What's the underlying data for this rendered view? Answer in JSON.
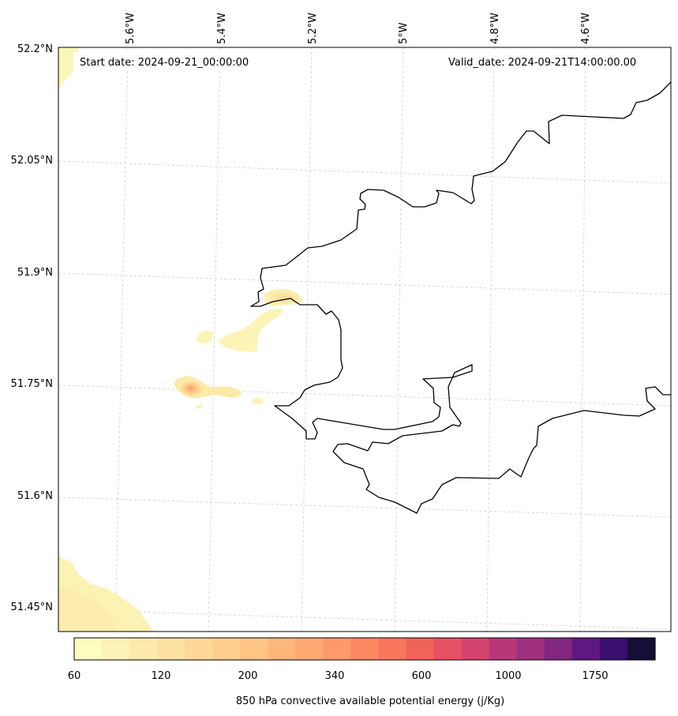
{
  "map": {
    "start_date": "Start date: 2024-09-21_00:00:00",
    "valid_date": "Valid_date: 2024-09-21T14:00:00.00",
    "longitude_ticks": [
      "5.6°W",
      "5.4°W",
      "5.2°W",
      "5°W",
      "4.8°W",
      "4.6°W"
    ],
    "latitude_ticks": [
      "52.2°N",
      "52.05°N",
      "51.9°N",
      "51.75°N",
      "51.6°N",
      "51.45°N"
    ],
    "extent": {
      "lon_min": -5.75,
      "lon_max": -4.4,
      "lat_min": 51.42,
      "lat_max": 52.2
    },
    "gridlines": "dashed",
    "coastline_color": "#000000"
  },
  "colorbar": {
    "label": "850 hPa convective available potential energy (j/Kg)",
    "tick_labels": [
      "60",
      "120",
      "200",
      "340",
      "600",
      "1000",
      "1750"
    ],
    "colors": [
      "#fcfdbf",
      "#fcf4b6",
      "#fceaac",
      "#fde1a2",
      "#fdd898",
      "#fece8e",
      "#fec584",
      "#feb77a",
      "#fea972",
      "#fe9a6a",
      "#fc8961",
      "#f8765c",
      "#f06358",
      "#e55064",
      "#d3436e",
      "#b73779",
      "#9e2f7f",
      "#822681",
      "#5f187f",
      "#3b0f70",
      "#150e37"
    ]
  },
  "cape_features": [
    {
      "region": "north-west corner",
      "level": "60-80"
    },
    {
      "region": "south-west corner",
      "level": "60-120"
    },
    {
      "region": "St Brides Bay coast",
      "level": "80-200"
    },
    {
      "region": "St Davids peninsula",
      "level": "up to 600"
    }
  ]
}
